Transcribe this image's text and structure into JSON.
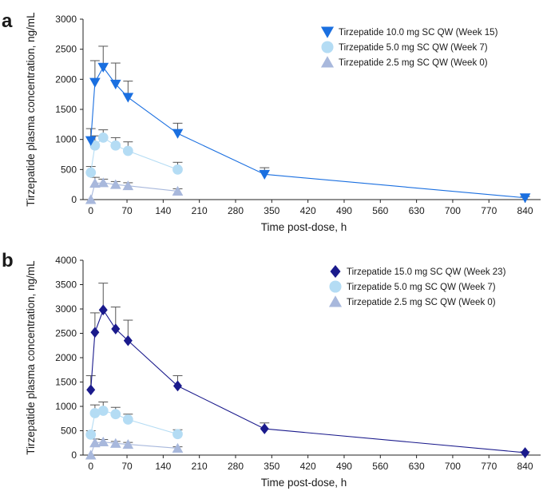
{
  "colors": {
    "dose_10mg": "#1a6fe0",
    "dose_15mg": "#1a1a8c",
    "dose_5mg": "#b4dcf4",
    "dose_2_5mg": "#a8b8dc",
    "error_bar": "#555555",
    "axis": "#222222"
  },
  "chart_data": [
    {
      "type": "line",
      "panel_label": "a",
      "xlabel": "Time post-dose, h",
      "ylabel": "Tirzepatide plasma concentration, ng/mL",
      "xlim": [
        -15,
        870
      ],
      "ylim": [
        0,
        3000
      ],
      "x_ticks": [
        0,
        70,
        140,
        210,
        280,
        350,
        420,
        490,
        560,
        630,
        700,
        770,
        840
      ],
      "y_ticks": [
        0,
        500,
        1000,
        1500,
        2000,
        2500,
        3000
      ],
      "grid": false,
      "legend_position": "top-right",
      "series": [
        {
          "name": "Tirzepatide 10.0 mg SC QW (Week 15)",
          "marker": "triangle-down",
          "color_key": "dose_10mg",
          "x": [
            0,
            8,
            24,
            48,
            72,
            168,
            336,
            840
          ],
          "y": [
            980,
            1950,
            2200,
            1920,
            1700,
            1100,
            420,
            30
          ],
          "err": [
            200,
            360,
            350,
            350,
            270,
            170,
            110,
            20
          ]
        },
        {
          "name": "Tirzepatide 5.0 mg SC QW (Week 7)",
          "marker": "circle",
          "color_key": "dose_5mg",
          "x": [
            0,
            8,
            24,
            48,
            72,
            168
          ],
          "y": [
            450,
            900,
            1030,
            900,
            810,
            500
          ],
          "err": [
            100,
            160,
            130,
            130,
            150,
            120
          ]
        },
        {
          "name": "Tirzepatide 2.5 mg SC QW (Week 0)",
          "marker": "triangle-up",
          "color_key": "dose_2_5mg",
          "x": [
            0,
            8,
            24,
            48,
            72,
            168
          ],
          "y": [
            0,
            270,
            280,
            250,
            230,
            140
          ],
          "err": [
            0,
            100,
            60,
            50,
            50,
            40
          ]
        }
      ]
    },
    {
      "type": "line",
      "panel_label": "b",
      "xlabel": "Time post-dose, h",
      "ylabel": "Tirzepatide plasma concentration, ng/mL",
      "xlim": [
        -15,
        870
      ],
      "ylim": [
        0,
        4000
      ],
      "x_ticks": [
        0,
        70,
        140,
        210,
        280,
        350,
        420,
        490,
        560,
        630,
        700,
        770,
        840
      ],
      "y_ticks": [
        0,
        500,
        1000,
        1500,
        2000,
        2500,
        3000,
        3500,
        4000
      ],
      "grid": false,
      "legend_position": "top-right",
      "series": [
        {
          "name": "Tirzepatide 15.0 mg SC QW (Week 23)",
          "marker": "diamond",
          "color_key": "dose_15mg",
          "x": [
            0,
            8,
            24,
            48,
            72,
            168,
            336,
            840
          ],
          "y": [
            1340,
            2520,
            2980,
            2590,
            2350,
            1420,
            540,
            50
          ],
          "err": [
            290,
            400,
            550,
            450,
            420,
            210,
            120,
            20
          ]
        },
        {
          "name": "Tirzepatide 5.0 mg SC QW (Week 7)",
          "marker": "circle",
          "color_key": "dose_5mg",
          "x": [
            0,
            8,
            24,
            48,
            72,
            168
          ],
          "y": [
            420,
            860,
            910,
            840,
            730,
            430
          ],
          "err": [
            80,
            170,
            180,
            140,
            110,
            90
          ]
        },
        {
          "name": "Tirzepatide 2.5 mg SC QW (Week 0)",
          "marker": "triangle-up",
          "color_key": "dose_2_5mg",
          "x": [
            0,
            8,
            24,
            48,
            72,
            168
          ],
          "y": [
            0,
            250,
            270,
            240,
            220,
            140
          ],
          "err": [
            0,
            80,
            50,
            40,
            40,
            30
          ]
        }
      ]
    }
  ]
}
